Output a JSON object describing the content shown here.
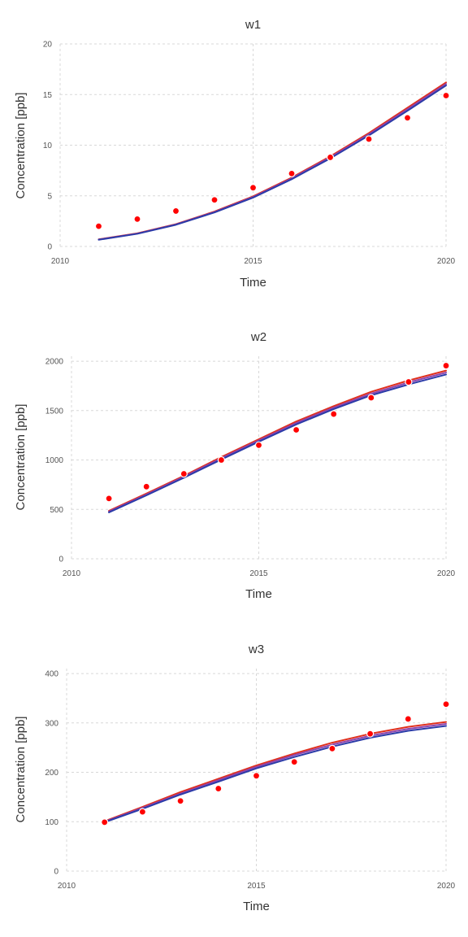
{
  "chart_data": [
    {
      "type": "line",
      "title": "w1",
      "xlabel": "Time",
      "ylabel": "Concentration [ppb]",
      "xlim": [
        2010,
        2020
      ],
      "ylim": [
        0,
        20
      ],
      "xticks": [
        2010,
        2015,
        2020
      ],
      "yticks": [
        0,
        5,
        10,
        15,
        20
      ],
      "grid": true,
      "series": [
        {
          "x": [
            2011,
            2012,
            2013,
            2014,
            2015,
            2016,
            2017,
            2018,
            2019,
            2020
          ],
          "values": [
            0.7,
            1.3,
            2.2,
            3.45,
            4.95,
            6.8,
            8.9,
            11.2,
            13.7,
            16.2
          ],
          "color": "#e0301e"
        },
        {
          "x": [
            2011,
            2012,
            2013,
            2014,
            2015,
            2016,
            2017,
            2018,
            2019,
            2020
          ],
          "values": [
            0.68,
            1.27,
            2.17,
            3.4,
            4.88,
            6.72,
            8.8,
            11.08,
            13.55,
            16.05
          ],
          "color": "#8e44ad"
        },
        {
          "x": [
            2011,
            2012,
            2013,
            2014,
            2015,
            2016,
            2017,
            2018,
            2019,
            2020
          ],
          "values": [
            0.66,
            1.25,
            2.14,
            3.36,
            4.82,
            6.64,
            8.7,
            10.96,
            13.4,
            15.9
          ],
          "color": "#2b3ba8"
        }
      ],
      "points": {
        "x": [
          2011,
          2012,
          2013,
          2014,
          2015,
          2016,
          2017,
          2018,
          2019,
          2020
        ],
        "values": [
          2.0,
          2.7,
          3.5,
          4.6,
          5.8,
          7.2,
          8.8,
          10.6,
          12.7,
          14.9
        ],
        "color": "#ff0000"
      }
    },
    {
      "type": "line",
      "title": "w2",
      "xlabel": "Time",
      "ylabel": "Concentration [ppb]",
      "xlim": [
        2010,
        2020
      ],
      "ylim": [
        0,
        2050
      ],
      "xticks": [
        2010,
        2015,
        2020
      ],
      "yticks": [
        0,
        500,
        1000,
        1500,
        2000
      ],
      "grid": true,
      "series": [
        {
          "x": [
            2011,
            2012,
            2013,
            2014,
            2015,
            2016,
            2017,
            2018,
            2019,
            2020
          ],
          "values": [
            485,
            660,
            840,
            1030,
            1210,
            1390,
            1545,
            1690,
            1805,
            1905
          ],
          "color": "#e0301e"
        },
        {
          "x": [
            2011,
            2012,
            2013,
            2014,
            2015,
            2016,
            2017,
            2018,
            2019,
            2020
          ],
          "values": [
            478,
            650,
            830,
            1018,
            1198,
            1375,
            1530,
            1672,
            1785,
            1885
          ],
          "color": "#8e44ad"
        },
        {
          "x": [
            2011,
            2012,
            2013,
            2014,
            2015,
            2016,
            2017,
            2018,
            2019,
            2020
          ],
          "values": [
            470,
            642,
            820,
            1005,
            1185,
            1360,
            1515,
            1655,
            1765,
            1865
          ],
          "color": "#2b3ba8"
        }
      ],
      "points": {
        "x": [
          2011,
          2012,
          2013,
          2014,
          2015,
          2016,
          2017,
          2018,
          2019,
          2020
        ],
        "values": [
          610,
          730,
          860,
          1000,
          1150,
          1305,
          1465,
          1630,
          1790,
          1955
        ],
        "color": "#ff0000"
      }
    },
    {
      "type": "line",
      "title": "w3",
      "xlabel": "Time",
      "ylabel": "Concentration [ppb]",
      "xlim": [
        2010,
        2020
      ],
      "ylim": [
        0,
        410
      ],
      "xticks": [
        2010,
        2015,
        2020
      ],
      "yticks": [
        0,
        100,
        200,
        300,
        400
      ],
      "grid": true,
      "series": [
        {
          "x": [
            2011,
            2012,
            2013,
            2014,
            2015,
            2016,
            2017,
            2018,
            2019,
            2020
          ],
          "values": [
            101,
            130,
            160,
            187,
            214,
            238,
            260,
            278,
            292,
            302
          ],
          "color": "#e0301e"
        },
        {
          "x": [
            2011,
            2012,
            2013,
            2014,
            2015,
            2016,
            2017,
            2018,
            2019,
            2020
          ],
          "values": [
            100,
            128,
            157,
            184,
            211,
            235,
            256,
            274,
            288,
            298
          ],
          "color": "#8e44ad"
        },
        {
          "x": [
            2011,
            2012,
            2013,
            2014,
            2015,
            2016,
            2017,
            2018,
            2019,
            2020
          ],
          "values": [
            99,
            126,
            155,
            181,
            208,
            231,
            252,
            270,
            284,
            294
          ],
          "color": "#2b3ba8"
        }
      ],
      "points": {
        "x": [
          2011,
          2012,
          2013,
          2014,
          2015,
          2016,
          2017,
          2018,
          2019,
          2020
        ],
        "values": [
          99,
          120,
          142,
          167,
          193,
          221,
          248,
          278,
          308,
          338
        ],
        "color": "#ff0000"
      }
    }
  ]
}
